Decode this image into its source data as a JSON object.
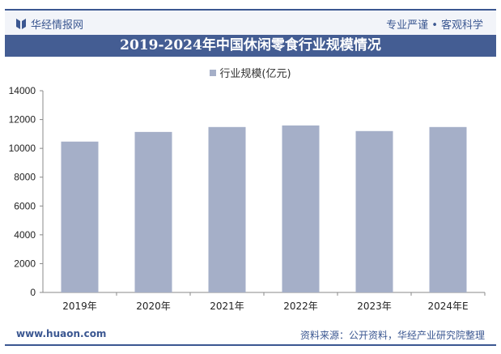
{
  "header": {
    "brand": "华经情报网",
    "slogan": "专业严谨 • 客观科学"
  },
  "footer": {
    "site": "www.huaon.com",
    "source": "资料来源：公开资料，华经产业研究院整理"
  },
  "colors": {
    "bar": "#a5afc8",
    "title_bg": "#445d93",
    "brand": "#3b5791"
  },
  "chart_data": {
    "type": "bar",
    "title": "2019-2024年中国休闲零食行业规模情况",
    "categories": [
      "2019年",
      "2020年",
      "2021年",
      "2022年",
      "2023年",
      "2024年E"
    ],
    "series": [
      {
        "name": "行业规模(亿元)",
        "values": [
          10470,
          11140,
          11480,
          11590,
          11200,
          11480
        ]
      }
    ],
    "ylim": [
      0,
      14000
    ],
    "yticks": [
      0,
      2000,
      4000,
      6000,
      8000,
      10000,
      12000,
      14000
    ],
    "legend": "top",
    "grid": false
  }
}
